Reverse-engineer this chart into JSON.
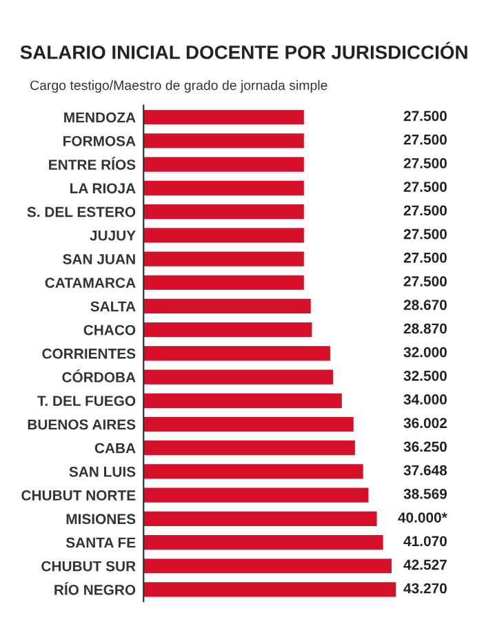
{
  "chart_data": {
    "type": "bar",
    "orientation": "horizontal",
    "title": "SALARIO INICIAL DOCENTE POR JURISDICCIÓN",
    "subtitle": "Cargo testigo/Maestro de grado de jornada simple",
    "categories": [
      "MENDOZA",
      "FORMOSA",
      "ENTRE RÍOS",
      "LA RIOJA",
      "S. DEL ESTERO",
      "JUJUY",
      "SAN JUAN",
      "CATAMARCA",
      "SALTA",
      "CHACO",
      "CORRIENTES",
      "CÓRDOBA",
      "T. DEL FUEGO",
      "BUENOS AIRES",
      "CABA",
      "SAN LUIS",
      "CHUBUT NORTE",
      "MISIONES",
      "SANTA FE",
      "CHUBUT SUR",
      "RÍO NEGRO"
    ],
    "values": [
      27500,
      27500,
      27500,
      27500,
      27500,
      27500,
      27500,
      27500,
      28670,
      28870,
      32000,
      32500,
      34000,
      36002,
      36250,
      37648,
      38569,
      40000,
      41070,
      42527,
      43270
    ],
    "value_labels": [
      "27.500",
      "27.500",
      "27.500",
      "27.500",
      "27.500",
      "27.500",
      "27.500",
      "27.500",
      "28.670",
      "28.870",
      "32.000",
      "32.500",
      "34.000",
      "36.002",
      "36.250",
      "37.648",
      "38.569",
      "40.000*",
      "41.070",
      "42.527",
      "43.270"
    ],
    "color": "#d7102a",
    "grid": false,
    "legend": false
  }
}
